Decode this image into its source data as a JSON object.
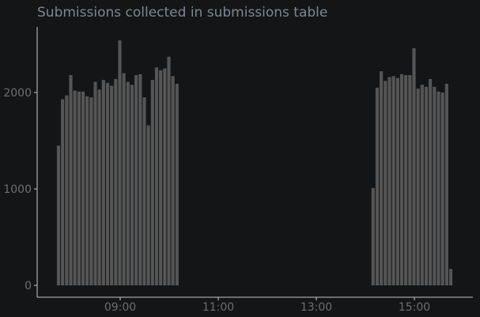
{
  "chart_data": {
    "type": "bar",
    "title": "Submissions collected in submissions table",
    "xlabel": "",
    "ylabel": "",
    "x_ticks": [
      "09:00",
      "11:00",
      "13:00",
      "15:00"
    ],
    "x_tick_hours": [
      9,
      11,
      13,
      15
    ],
    "y_ticks": [
      0,
      1000,
      2000
    ],
    "xlim_hours": [
      7.3,
      16.2
    ],
    "ylim": [
      0,
      2750
    ],
    "grid": false,
    "bar_color": "#555555",
    "axis_color": "#c8c8c8",
    "tick_label_color": "#6e6e6e",
    "bar_width_hours": 0.0833,
    "series": [
      {
        "x_hours": [
          7.75,
          7.833,
          7.917,
          8.0,
          8.083,
          8.167,
          8.25,
          8.333,
          8.417,
          8.5,
          8.583,
          8.667,
          8.75,
          8.833,
          8.917,
          9.0,
          9.083,
          9.167,
          9.25,
          9.333,
          9.417,
          9.5,
          9.583,
          9.667,
          9.75,
          9.833,
          9.917,
          10.0,
          10.083,
          10.167,
          14.167,
          14.25,
          14.333,
          14.417,
          14.5,
          14.583,
          14.667,
          14.75,
          14.833,
          14.917,
          15.0,
          15.083,
          15.167,
          15.25,
          15.333,
          15.417,
          15.5,
          15.583,
          15.667,
          15.75
        ],
        "values": [
          1450,
          1930,
          1970,
          2180,
          2020,
          2010,
          2010,
          1960,
          1950,
          2110,
          2030,
          2130,
          2100,
          2070,
          2140,
          2540,
          2200,
          2110,
          2080,
          2180,
          2190,
          1950,
          1660,
          2130,
          2260,
          2230,
          2250,
          2370,
          2170,
          2090,
          1010,
          2050,
          2220,
          2120,
          2160,
          2170,
          2150,
          2190,
          2180,
          2180,
          2460,
          2040,
          2080,
          2060,
          2140,
          2060,
          2010,
          2000,
          2090,
          170
        ]
      }
    ]
  }
}
